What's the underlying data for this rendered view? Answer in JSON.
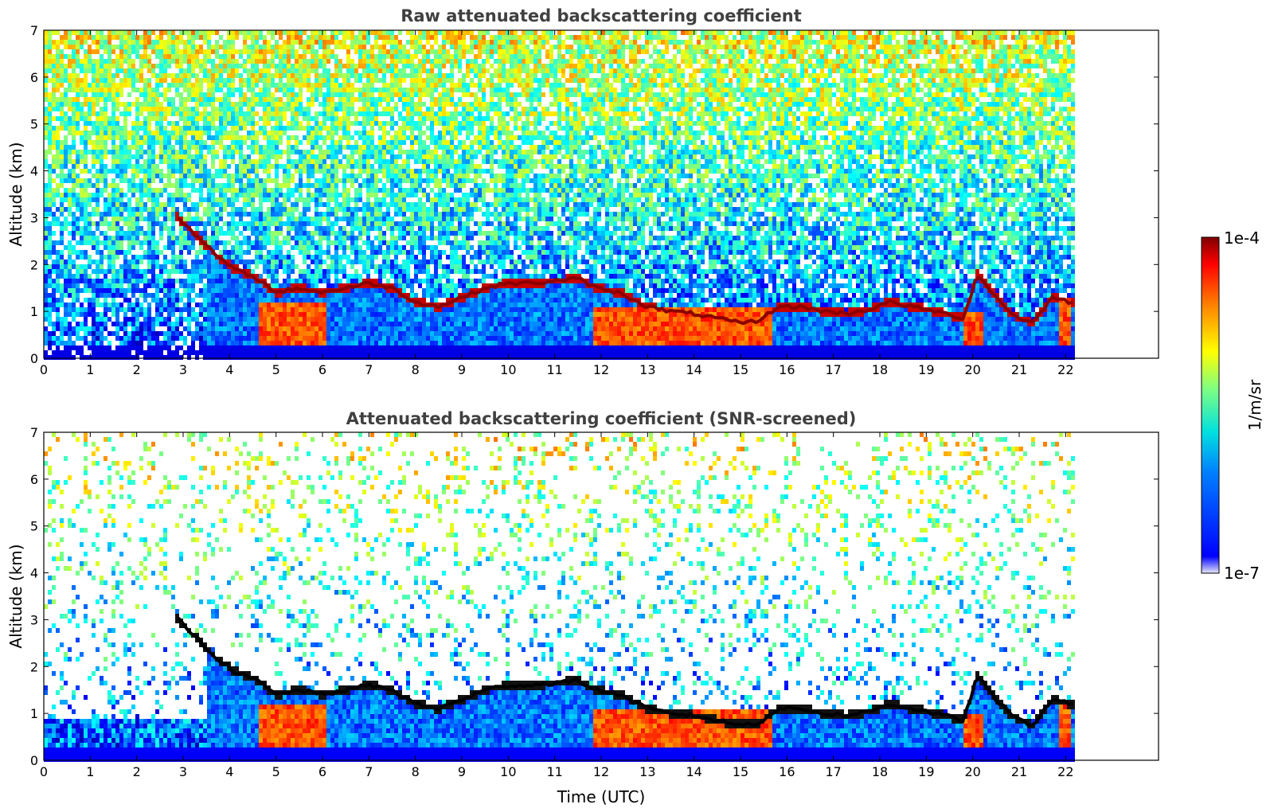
{
  "chart_data": [
    {
      "type": "heatmap",
      "title": "Raw attenuated backscattering coefficient",
      "xlabel": "",
      "ylabel": "Altitude (km)",
      "xlim": [
        0,
        24
      ],
      "ylim": [
        0,
        7
      ],
      "x_ticks": [
        "0",
        "1",
        "2",
        "3",
        "4",
        "5",
        "6",
        "7",
        "8",
        "9",
        "10",
        "11",
        "12",
        "13",
        "14",
        "15",
        "16",
        "17",
        "18",
        "19",
        "20",
        "21",
        "22"
      ],
      "y_ticks": [
        "0",
        "1",
        "2",
        "3",
        "4",
        "5",
        "6",
        "7"
      ],
      "data_end_time": 22.15,
      "screened": false,
      "cloud_layer": {
        "x": [
          2.9,
          3.3,
          3.7,
          4.1,
          4.6,
          5.0,
          5.5,
          6.0,
          6.5,
          7.0,
          7.5,
          8.0,
          8.5,
          9.0,
          9.5,
          10.0,
          10.5,
          11.0,
          11.5,
          11.9,
          12.4,
          13.0,
          13.5,
          14.0,
          14.5,
          15.0,
          15.4,
          15.8,
          16.3,
          16.8,
          17.3,
          17.8,
          18.2,
          18.7,
          19.2,
          19.8,
          20.1,
          20.5,
          20.9,
          21.3,
          21.7,
          22.1
        ],
        "altitude": [
          3.0,
          2.6,
          2.2,
          1.9,
          1.7,
          1.4,
          1.5,
          1.4,
          1.5,
          1.6,
          1.5,
          1.2,
          1.1,
          1.3,
          1.5,
          1.6,
          1.6,
          1.65,
          1.7,
          1.5,
          1.4,
          1.1,
          1.0,
          0.95,
          0.85,
          0.75,
          0.8,
          1.1,
          1.1,
          1.0,
          0.95,
          1.05,
          1.2,
          1.1,
          1.0,
          0.85,
          1.8,
          1.3,
          0.9,
          0.75,
          1.3,
          1.2
        ]
      },
      "boundary_layer_events": [
        {
          "start": 11.85,
          "end": 15.65,
          "top": 1.1
        },
        {
          "start": 4.6,
          "end": 6.1,
          "top": 1.2
        },
        {
          "start": 19.8,
          "end": 20.2,
          "top": 1.0
        },
        {
          "start": 21.9,
          "end": 22.15,
          "top": 1.3
        }
      ]
    },
    {
      "type": "heatmap",
      "title": "Attenuated backscattering coefficient (SNR-screened)",
      "xlabel": "Time (UTC)",
      "ylabel": "Altitude (km)",
      "xlim": [
        0,
        24
      ],
      "ylim": [
        0,
        7
      ],
      "x_ticks": [
        "0",
        "1",
        "2",
        "3",
        "4",
        "5",
        "6",
        "7",
        "8",
        "9",
        "10",
        "11",
        "12",
        "13",
        "14",
        "15",
        "16",
        "17",
        "18",
        "19",
        "20",
        "21",
        "22"
      ],
      "y_ticks": [
        "0",
        "1",
        "2",
        "3",
        "4",
        "5",
        "6",
        "7"
      ],
      "data_end_time": 22.15,
      "screened": true
    }
  ],
  "colorbar": {
    "label": "1/m/sr",
    "min_label": "1e-7",
    "max_label": "1e-4",
    "scale": "log",
    "colormap": "jet",
    "colors": [
      "#e8e8f8",
      "#0000ff",
      "#0080ff",
      "#00e0e0",
      "#80ff80",
      "#ffff00",
      "#ff8000",
      "#ff0000",
      "#800000"
    ]
  }
}
